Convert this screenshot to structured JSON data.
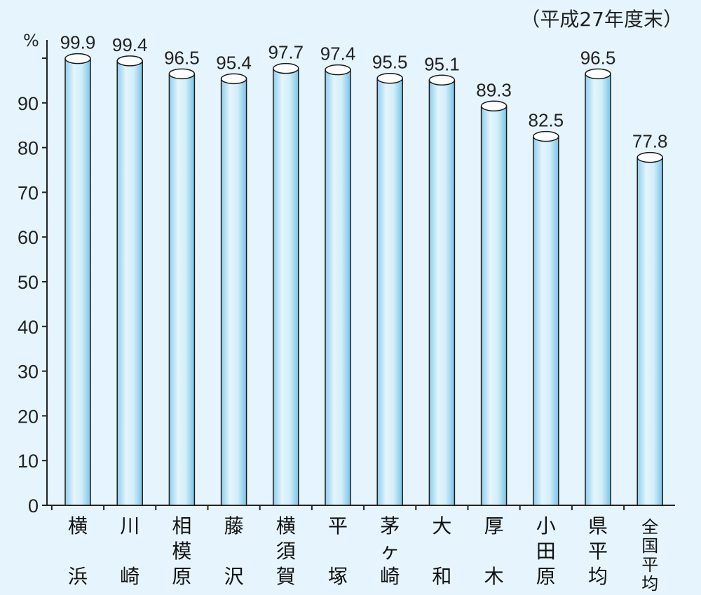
{
  "period_note": "（平成27年度末）",
  "unit_label": "%",
  "chart_data": {
    "type": "bar",
    "categories": [
      "横浜",
      "川崎",
      "相模原",
      "藤沢",
      "横須賀",
      "平塚",
      "茅ヶ崎",
      "大和",
      "厚木",
      "小田原",
      "県平均",
      "全国平均"
    ],
    "category_label_lines": [
      [
        "横",
        "",
        "浜"
      ],
      [
        "川",
        "",
        "崎"
      ],
      [
        "相",
        "模",
        "原"
      ],
      [
        "藤",
        "",
        "沢"
      ],
      [
        "横",
        "須",
        "賀"
      ],
      [
        "平",
        "",
        "塚"
      ],
      [
        "茅",
        "ヶ",
        "崎"
      ],
      [
        "大",
        "",
        "和"
      ],
      [
        "厚",
        "",
        "木"
      ],
      [
        "小",
        "田",
        "原"
      ],
      [
        "県",
        "平",
        "均"
      ],
      [
        "全",
        "国",
        "平",
        "均"
      ]
    ],
    "values": [
      99.9,
      99.4,
      96.5,
      95.4,
      97.7,
      97.4,
      95.5,
      95.1,
      89.3,
      82.5,
      96.5,
      77.8
    ],
    "value_labels": [
      "99.9",
      "99.4",
      "96.5",
      "95.4",
      "97.7",
      "97.4",
      "95.5",
      "95.1",
      "89.3",
      "82.5",
      "96.5",
      "77.8"
    ],
    "y_ticks": [
      "0",
      "10",
      "20",
      "30",
      "40",
      "50",
      "60",
      "70",
      "80",
      "90"
    ],
    "ylim": [
      0,
      100
    ],
    "xlabel": "",
    "ylabel": "%",
    "grid": false,
    "bar_color": "#bfe6f7",
    "bar_edge_color": "#1a1a1a"
  }
}
